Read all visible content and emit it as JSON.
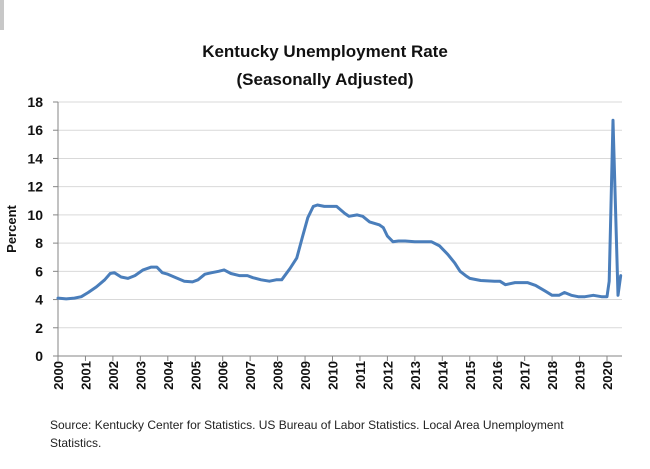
{
  "chart_data": {
    "type": "line",
    "title": "Kentucky Unemployment Rate",
    "subtitle": "(Seasonally Adjusted)",
    "xlabel": "",
    "ylabel": "Percent",
    "ylim": [
      0,
      18
    ],
    "xlim": [
      2000,
      2020.55
    ],
    "grid": true,
    "legend": "none",
    "y_ticks": [
      "0",
      "2",
      "4",
      "6",
      "8",
      "10",
      "12",
      "14",
      "16",
      "18"
    ],
    "x_ticks": [
      "2000",
      "2001",
      "2002",
      "2003",
      "2004",
      "2005",
      "2006",
      "2007",
      "2008",
      "2009",
      "2010",
      "2011",
      "2012",
      "2013",
      "2014",
      "2015",
      "2016",
      "2017",
      "2018",
      "2019",
      "2020"
    ],
    "series": [
      {
        "name": "Kentucky Unemployment Rate",
        "color": "#4a7ebb",
        "x": [
          2000.0,
          2000.3,
          2000.6,
          2000.85,
          2001.1,
          2001.4,
          2001.7,
          2001.9,
          2002.05,
          2002.3,
          2002.55,
          2002.8,
          2003.1,
          2003.4,
          2003.6,
          2003.8,
          2004.0,
          2004.3,
          2004.6,
          2004.9,
          2005.1,
          2005.35,
          2005.6,
          2005.85,
          2006.05,
          2006.3,
          2006.6,
          2006.9,
          2007.1,
          2007.4,
          2007.7,
          2007.95,
          2008.15,
          2008.45,
          2008.7,
          2008.9,
          2009.1,
          2009.3,
          2009.45,
          2009.7,
          2010.15,
          2010.45,
          2010.6,
          2010.9,
          2011.1,
          2011.35,
          2011.7,
          2011.85,
          2012.0,
          2012.2,
          2012.4,
          2012.65,
          2013.0,
          2013.6,
          2013.9,
          2014.2,
          2014.45,
          2014.65,
          2014.85,
          2015.0,
          2015.4,
          2015.9,
          2016.1,
          2016.3,
          2016.65,
          2017.1,
          2017.4,
          2017.75,
          2018.0,
          2018.25,
          2018.45,
          2018.7,
          2018.95,
          2019.2,
          2019.5,
          2019.8,
          2020.0,
          2020.08,
          2020.22,
          2020.4,
          2020.5
        ],
        "values": [
          4.1,
          4.05,
          4.1,
          4.2,
          4.5,
          4.9,
          5.4,
          5.85,
          5.9,
          5.6,
          5.5,
          5.7,
          6.1,
          6.3,
          6.3,
          5.9,
          5.8,
          5.55,
          5.3,
          5.25,
          5.4,
          5.8,
          5.9,
          6.0,
          6.1,
          5.85,
          5.7,
          5.7,
          5.55,
          5.4,
          5.3,
          5.4,
          5.4,
          6.2,
          6.95,
          8.4,
          9.8,
          10.6,
          10.7,
          10.6,
          10.6,
          10.1,
          9.9,
          10.0,
          9.9,
          9.5,
          9.3,
          9.1,
          8.5,
          8.1,
          8.15,
          8.15,
          8.1,
          8.1,
          7.8,
          7.2,
          6.6,
          6.0,
          5.7,
          5.5,
          5.35,
          5.3,
          5.3,
          5.05,
          5.2,
          5.2,
          5.0,
          4.6,
          4.3,
          4.3,
          4.5,
          4.3,
          4.2,
          4.2,
          4.3,
          4.2,
          4.2,
          5.3,
          16.7,
          4.3,
          5.7
        ]
      }
    ],
    "source": "Source: Kentucky Center for Statistics. US Bureau of Labor Statistics. Local Area Unemployment Statistics."
  }
}
